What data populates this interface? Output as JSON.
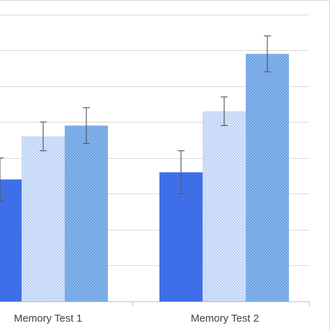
{
  "chart_data": {
    "type": "bar",
    "categories": [
      "Memory Test 1",
      "Memory Test 2"
    ],
    "ylim": [
      0,
      8.4
    ],
    "grid": true,
    "series": [
      {
        "color": "#3f6fe8",
        "pattern": "solid",
        "values": [
          3.4,
          3.6
        ],
        "error": [
          0.6,
          0.6
        ]
      },
      {
        "color": "#aec7f4",
        "pattern": "diagonal-hatch",
        "values": [
          4.6,
          5.3
        ],
        "error": [
          0.4,
          0.4
        ]
      },
      {
        "color": "#7fb0ea",
        "pattern": "dotted",
        "values": [
          4.9,
          6.9
        ],
        "error": [
          0.5,
          0.5
        ]
      }
    ]
  }
}
